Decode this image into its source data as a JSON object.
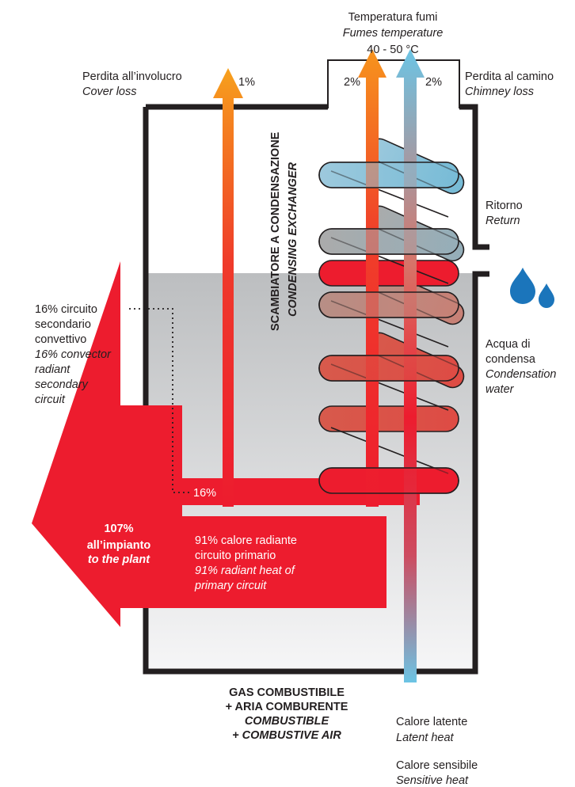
{
  "labels": {
    "fumes_temp_it": "Temperatura fumi",
    "fumes_temp_en": "Fumes temperature",
    "fumes_temp_value": "40 - 50 °C",
    "cover_loss_it": "Perdita all’involucro",
    "cover_loss_en": "Cover loss",
    "cover_loss_pct": "1%",
    "chimney_loss_it": "Perdita al camino",
    "chimney_loss_en": "Chimney loss",
    "fumes_pct_left": "2%",
    "fumes_pct_right": "2%",
    "exchanger_it": "SCAMBIATORE A CONDENSAZIONE",
    "exchanger_en": "CONDENSING EXCHANGER",
    "return_it": "Ritorno",
    "return_en": "Return",
    "condensate": [
      "Acqua di",
      "condensa",
      "Condensation",
      "water"
    ],
    "secondary": [
      "16% circuito",
      "secondario",
      "convettivo",
      "16% convector",
      "radiant",
      "secondary",
      "circuit"
    ],
    "secondary_pct": "16%",
    "plant_pct": "107%",
    "plant_it": "all’impianto",
    "plant_en": "to the plant",
    "primary": [
      "91% calore radiante",
      "circuito primario",
      "91% radiant heat of",
      "primary circuit"
    ],
    "gas": [
      "GAS COMBUSTIBILE",
      "+ ARIA COMBURENTE",
      "COMBUSTIBLE",
      "+ COMBUSTIVE AIR"
    ],
    "latent_it": "Calore latente",
    "latent_en": "Latent heat",
    "sensible_it": "Calore sensibile",
    "sensible_en": "Sensitive heat"
  },
  "colors": {
    "red": "#ed1c2e",
    "orange": "#f7941d",
    "blue": "#6cc4e4",
    "outline": "#231f20",
    "water": "#1b75bb"
  }
}
